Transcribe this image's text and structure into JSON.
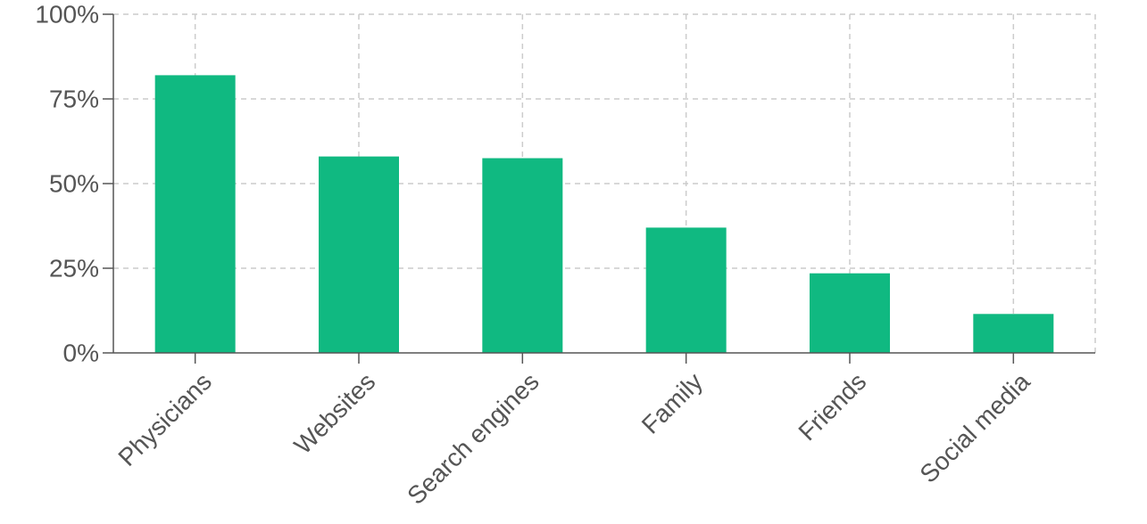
{
  "chart_data": {
    "type": "bar",
    "categories": [
      "Physicians",
      "Websites",
      "Search engines",
      "Family",
      "Friends",
      "Social media"
    ],
    "values": [
      82,
      58,
      57.5,
      37,
      23.5,
      11.5
    ],
    "ylim": [
      0,
      100
    ],
    "yticks": [
      0,
      25,
      50,
      75,
      100
    ],
    "ytick_labels": [
      "0%",
      "25%",
      "50%",
      "75%",
      "100%"
    ],
    "title": "",
    "xlabel": "",
    "ylabel": "",
    "grid": true,
    "bar_color": "#10b981"
  }
}
